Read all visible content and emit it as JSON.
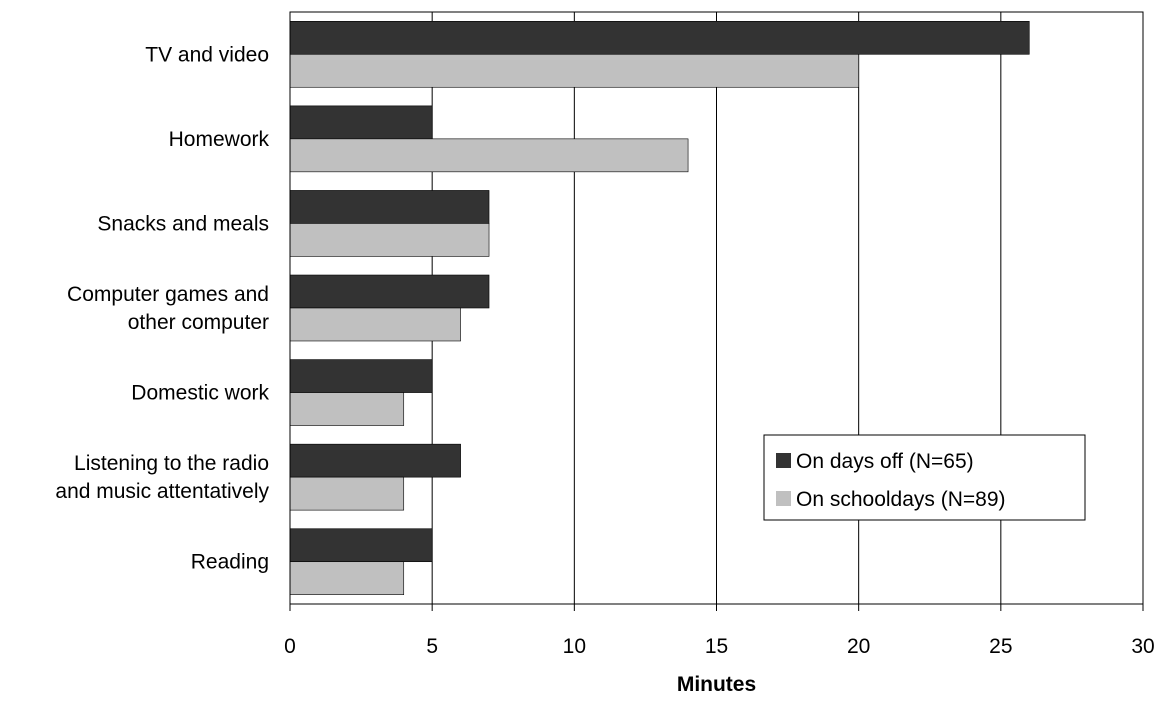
{
  "chart_data": {
    "type": "bar",
    "orientation": "horizontal",
    "title": "",
    "xlabel": "Minutes",
    "ylabel": "",
    "xlim": [
      0,
      30
    ],
    "x_ticks": [
      "0",
      "5",
      "10",
      "15",
      "20",
      "25",
      "30"
    ],
    "grid": "vertical",
    "legend_position": "center-right",
    "categories": [
      [
        "TV and video"
      ],
      [
        "Homework"
      ],
      [
        "Snacks and meals"
      ],
      [
        "Computer games and",
        "other computer"
      ],
      [
        "Domestic work"
      ],
      [
        "Listening to the radio",
        "and music attentatively"
      ],
      [
        "Reading"
      ]
    ],
    "series": [
      {
        "name": "On days off (N=65)",
        "color": "#333333",
        "values": [
          26,
          5,
          7,
          7,
          5,
          6,
          5
        ]
      },
      {
        "name": "On schooldays (N=89)",
        "color": "#c0c0c0",
        "values": [
          20,
          14,
          7,
          6,
          4,
          4,
          4
        ]
      }
    ]
  }
}
